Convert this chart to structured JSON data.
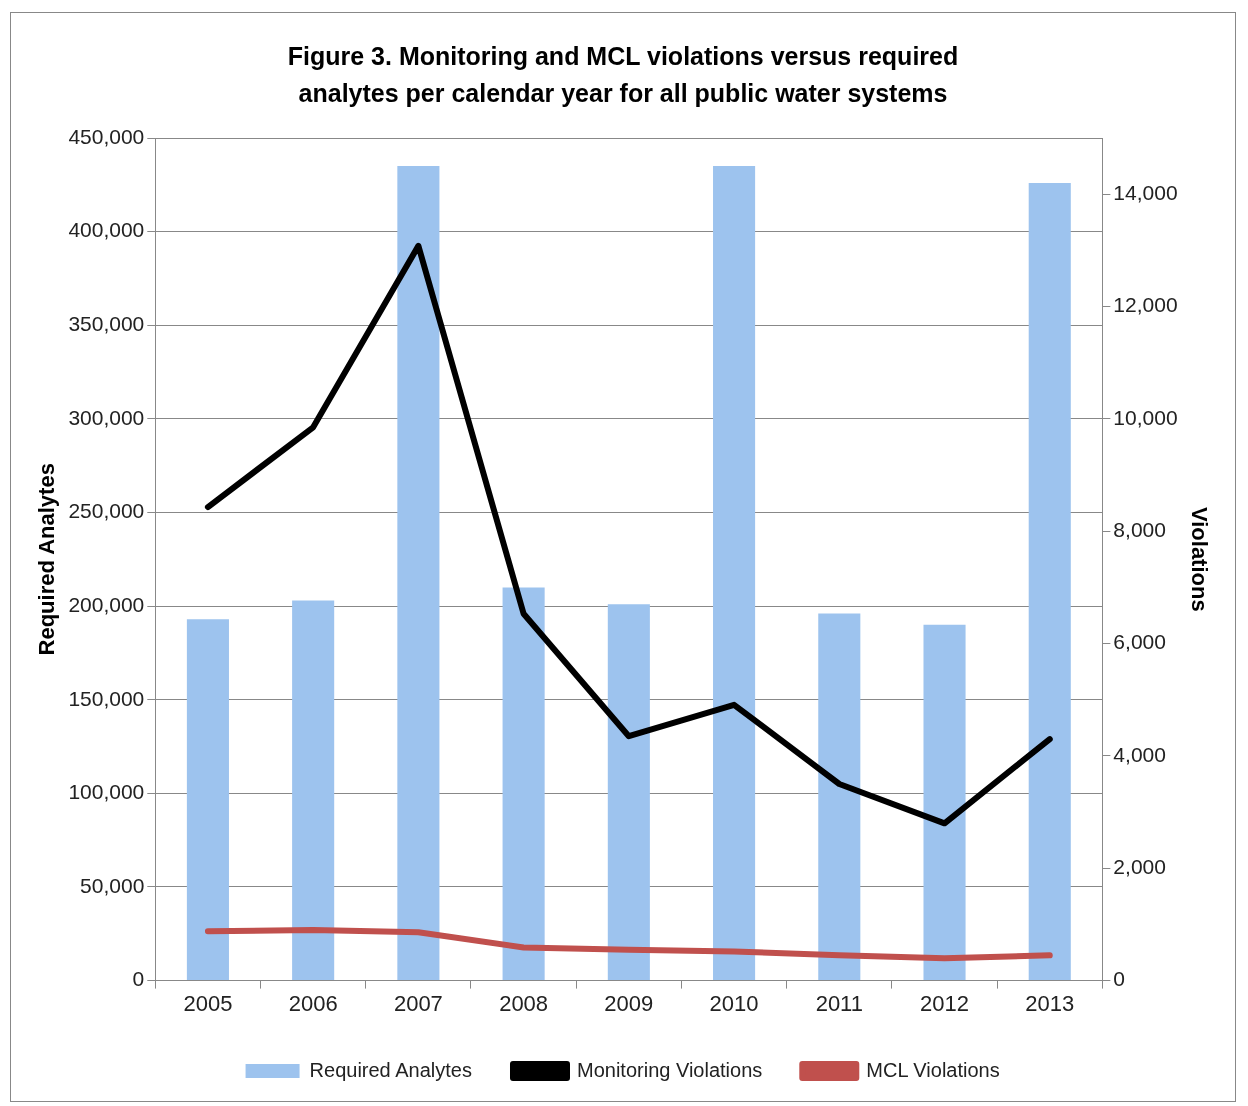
{
  "chart_data": {
    "type": "bar",
    "title": "Figure 3. Monitoring and MCL violations versus required analytes per calendar year for all public water systems",
    "categories": [
      "2005",
      "2006",
      "2007",
      "2008",
      "2009",
      "2010",
      "2011",
      "2012",
      "2013"
    ],
    "series": [
      {
        "name": "Required Analytes",
        "color": "#9dc3ee",
        "values": [
          193000,
          203000,
          435000,
          210000,
          201000,
          435000,
          196000,
          190000,
          426000
        ]
      },
      {
        "name": "Monitoring Violations",
        "type": "line",
        "axis": "y2",
        "color": "#000000",
        "values": [
          8430,
          9850,
          13080,
          6530,
          4350,
          4910,
          3500,
          2800,
          4300
        ]
      },
      {
        "name": "MCL Violations",
        "type": "line",
        "axis": "y2",
        "color": "#c0504d",
        "values": [
          880,
          900,
          860,
          590,
          550,
          520,
          450,
          400,
          450
        ]
      }
    ],
    "ylabel": "Required Analytes",
    "y2label": "Violations",
    "ylim": [
      0,
      450000
    ],
    "yticks": [
      0,
      {
        "value": 50000,
        "label": "50,000"
      },
      {
        "value": 100000,
        "label": "100,000"
      },
      {
        "value": 150000,
        "label": "150,000"
      },
      {
        "value": 200000,
        "label": "200,000"
      },
      {
        "value": 250000,
        "label": "250,000"
      },
      {
        "value": 300000,
        "label": "300,000"
      },
      {
        "value": 350000,
        "label": "350,000"
      },
      {
        "value": 400000,
        "label": "400,000"
      },
      {
        "value": 450000,
        "label": "450,000"
      }
    ],
    "y2lim": [
      0,
      15000
    ],
    "y2ticks": [
      0,
      {
        "value": 2000,
        "label": "2,000"
      },
      {
        "value": 4000,
        "label": "4,000"
      },
      {
        "value": 6000,
        "label": "6,000"
      },
      {
        "value": 8000,
        "label": "8,000"
      },
      {
        "value": 10000,
        "label": "10,000"
      },
      {
        "value": 12000,
        "label": "12,000"
      },
      {
        "value": 14000,
        "label": "14,000"
      }
    ],
    "grid": "y",
    "legend": "bottom"
  }
}
